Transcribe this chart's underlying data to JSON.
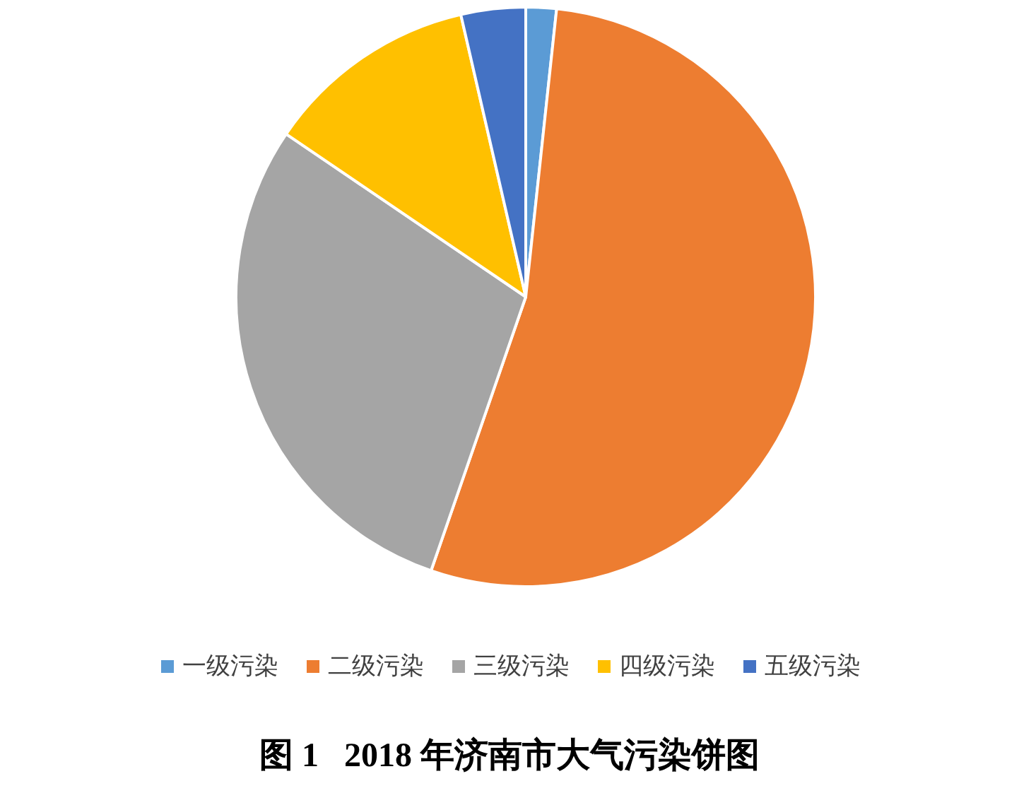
{
  "chart_data": {
    "type": "pie",
    "title": "图 1   2018 年济南市大气污染饼图",
    "categories": [
      "一级污染",
      "二级污染",
      "三级污染",
      "四级污染",
      "五级污染"
    ],
    "values": [
      1.7,
      53.6,
      29.2,
      11.9,
      3.6
    ],
    "colors": [
      "#5b9bd5",
      "#ed7d31",
      "#a5a5a5",
      "#ffc000",
      "#4472c4"
    ],
    "legend": "bottom"
  }
}
